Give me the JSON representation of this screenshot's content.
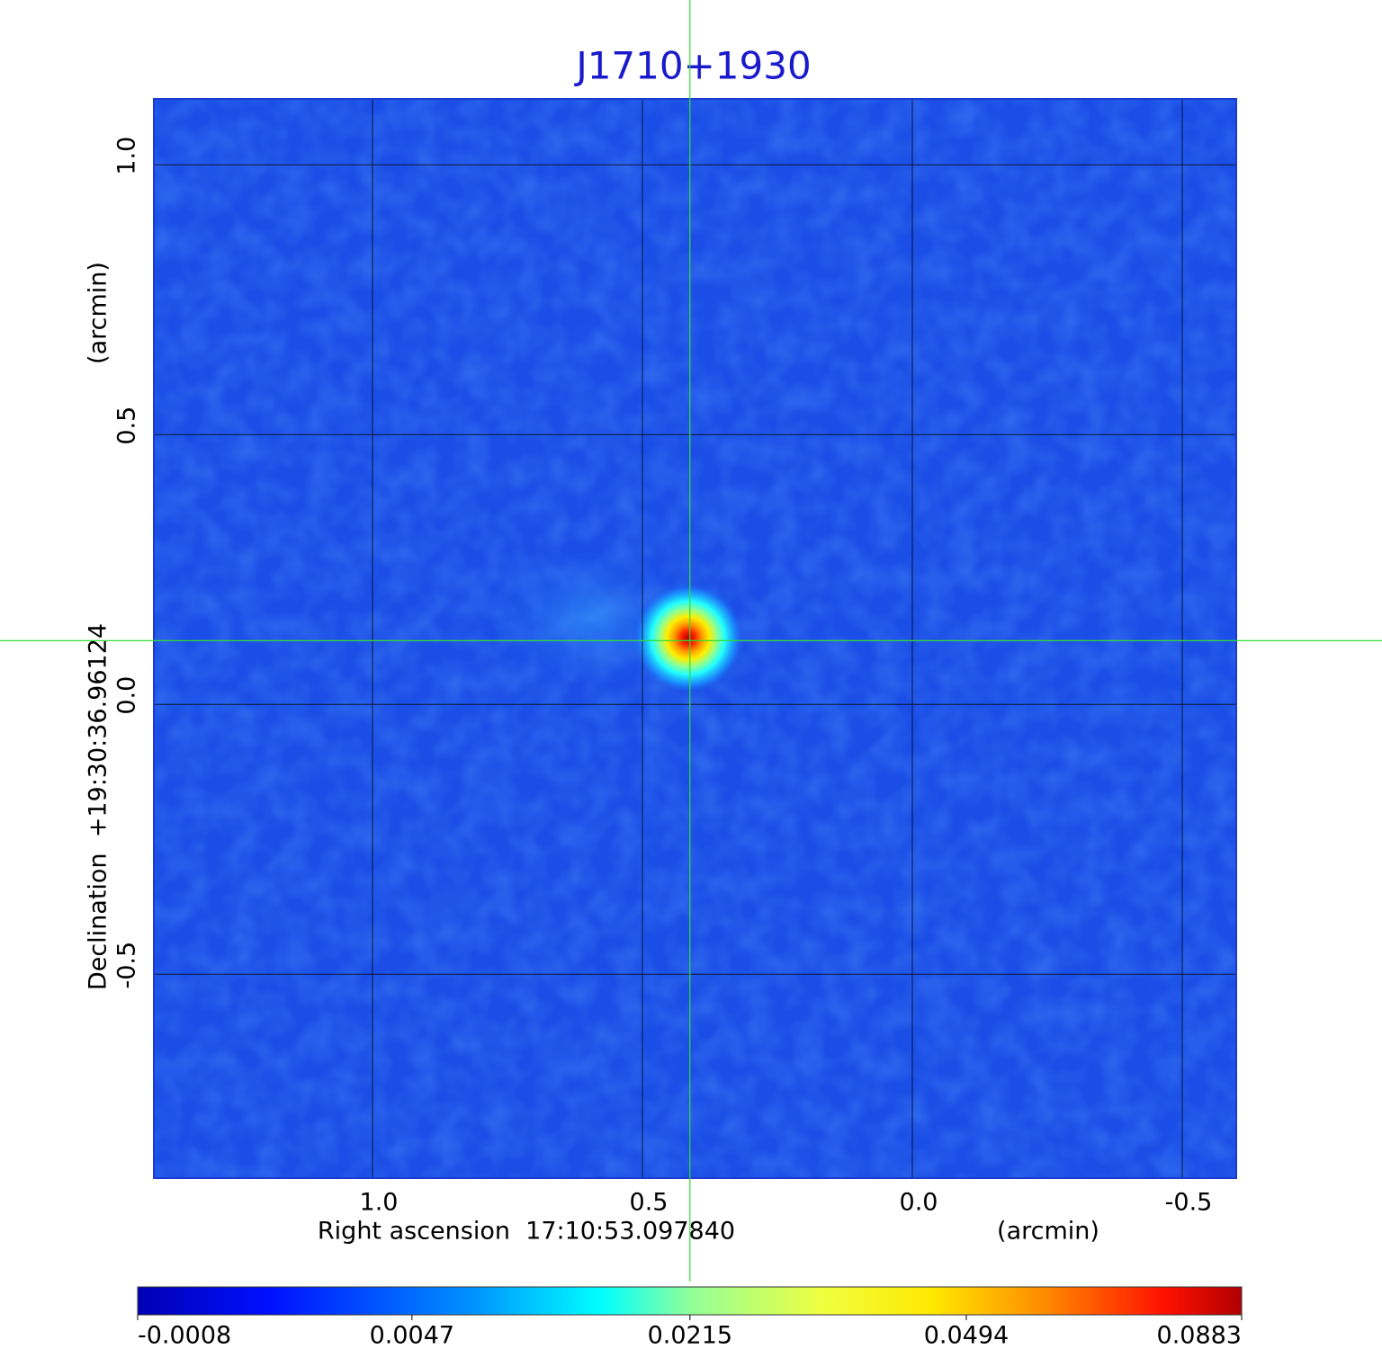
{
  "chart_data": {
    "type": "image",
    "title": "J1710+1930",
    "x_label": "Right ascension  17:10:53.097840",
    "x_unit": "(arcmin)",
    "y_label": "Declination  +19:30:36.96124",
    "y_unit": "(arcmin)",
    "xlim": [
      1.405,
      -0.6
    ],
    "xticks": [
      {
        "value": 1,
        "label": "1.0"
      },
      0.5,
      {
        "value": 0,
        "label": "0.0"
      },
      -0.5
    ],
    "ylim": [
      -0.878,
      1.122
    ],
    "yticks": [
      {
        "value": 1,
        "label": "1.0"
      },
      0.5,
      {
        "value": 0,
        "label": "0.0"
      },
      -0.5
    ],
    "grid": true,
    "crosshair": {
      "x": 0.412,
      "y": 0.118,
      "color": "#33dd33"
    },
    "colorbar": {
      "scale": "sqrt",
      "lim": [
        -0.0008,
        0.0883
      ],
      "ticks": [
        -0.0008,
        0.0047,
        0.0215,
        0.0494,
        0.0883
      ]
    }
  }
}
